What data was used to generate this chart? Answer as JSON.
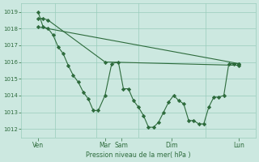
{
  "xlabel": "Pression niveau de la mer( hPa )",
  "bg_color": "#cce8e0",
  "grid_color": "#99ccbb",
  "line_color": "#2d6b3c",
  "ylim": [
    1011.5,
    1019.5
  ],
  "yticks": [
    1012,
    1013,
    1014,
    1015,
    1016,
    1017,
    1018,
    1019
  ],
  "xlim": [
    0,
    7
  ],
  "xtick_positions": [
    0.5,
    2.5,
    3.0,
    4.5,
    6.5
  ],
  "xtick_labels": [
    "Ven",
    "Mar",
    "Sam",
    "Dim",
    "Lun"
  ],
  "vline_positions": [
    1.0,
    2.25,
    3.5,
    5.5
  ],
  "line1_x": [
    0.5,
    0.65,
    0.8,
    0.95,
    1.1,
    1.25,
    1.4,
    1.55,
    1.7,
    1.85,
    2.0,
    2.15,
    2.3,
    2.5,
    2.7,
    2.9,
    3.05,
    3.2,
    3.35,
    3.5,
    3.65,
    3.8,
    3.95,
    4.1,
    4.25,
    4.4,
    4.55,
    4.7,
    4.85,
    5.0,
    5.15,
    5.3,
    5.45,
    5.6,
    5.75,
    5.9,
    6.05,
    6.2,
    6.35,
    6.5
  ],
  "line1_y": [
    1019.0,
    1018.1,
    1018.0,
    1017.6,
    1016.9,
    1016.5,
    1015.8,
    1015.2,
    1014.8,
    1014.2,
    1013.8,
    1013.1,
    1013.1,
    1014.0,
    1015.9,
    1016.0,
    1014.4,
    1014.4,
    1013.7,
    1013.3,
    1012.8,
    1012.1,
    1012.1,
    1012.4,
    1013.0,
    1013.6,
    1014.0,
    1013.7,
    1013.5,
    1012.5,
    1012.5,
    1012.3,
    1012.3,
    1013.3,
    1013.9,
    1013.9,
    1014.0,
    1015.9,
    1015.9,
    1015.9
  ],
  "line2_x": [
    0.5,
    6.5
  ],
  "line2_y": [
    1018.1,
    1015.9
  ],
  "line3_x": [
    0.5,
    0.65,
    0.8,
    2.5,
    6.5
  ],
  "line3_y": [
    1018.6,
    1018.6,
    1018.5,
    1016.0,
    1015.8
  ]
}
